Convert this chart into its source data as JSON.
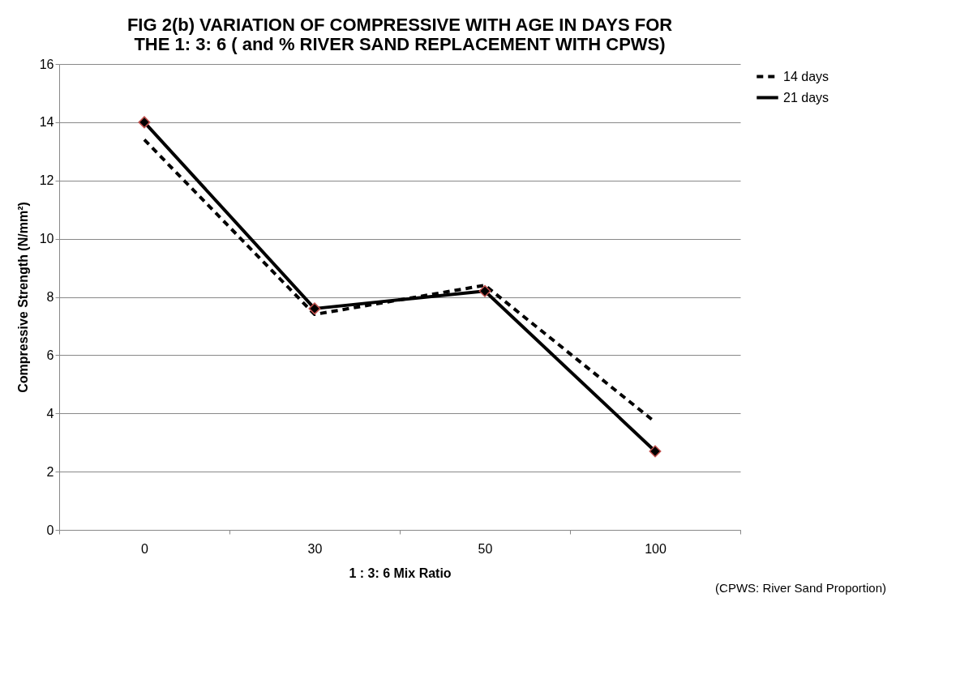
{
  "chart_data": {
    "type": "line",
    "title": "FIG 2(b)  VARIATION OF COMPRESSIVE WITH AGE IN DAYS FOR\nTHE 1: 3: 6 ( and % RIVER SAND REPLACEMENT WITH CPWS)",
    "xlabel": "1 : 3: 6 Mix Ratio",
    "ylabel": "Compressive Strength (N/mm²)",
    "annotations": [
      "(CPWS: River Sand Proportion)"
    ],
    "categories": [
      "0",
      "30",
      "50",
      "100"
    ],
    "series": [
      {
        "name": "14 days",
        "color": "#000000",
        "line_style": "dashed",
        "marker": "none",
        "values": [
          13.4,
          7.4,
          8.4,
          3.7
        ]
      },
      {
        "name": "21 days",
        "color": "#000000",
        "line_style": "solid",
        "marker": "diamond",
        "values": [
          14.0,
          7.6,
          8.2,
          2.7
        ]
      }
    ],
    "ylim": [
      0,
      16
    ],
    "yticks": [
      0,
      2,
      4,
      6,
      8,
      10,
      12,
      14,
      16
    ],
    "grid": "y",
    "legend": "right"
  }
}
